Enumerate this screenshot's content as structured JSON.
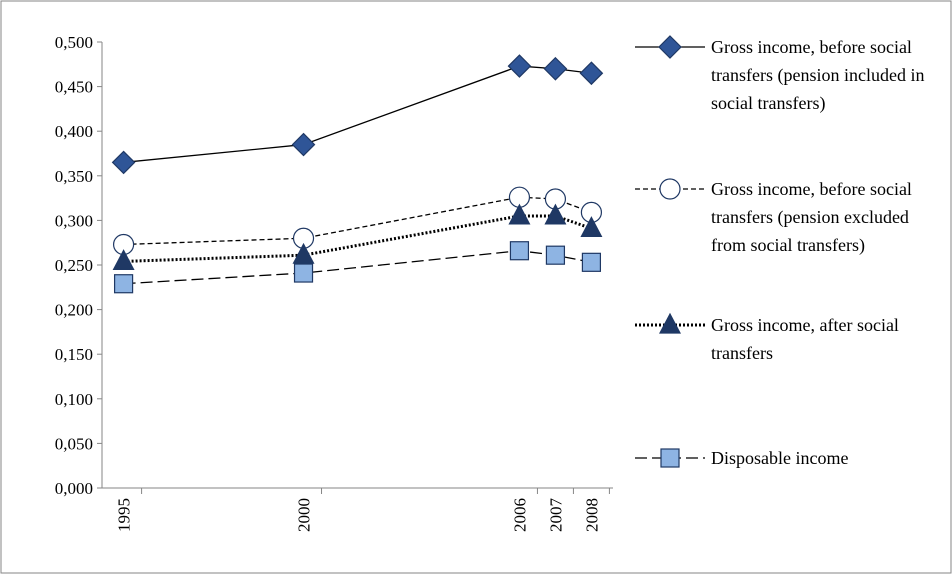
{
  "chart_data": {
    "type": "line",
    "x": [
      1995,
      2000,
      2006,
      2007,
      2008
    ],
    "xlim": [
      1994.4,
      2008.6
    ],
    "xticks": [
      1995,
      2000,
      2006,
      2007,
      2008
    ],
    "ylim": [
      0,
      0.5
    ],
    "yticks": [
      {
        "value": 0,
        "label": "0,000"
      },
      {
        "value": 0.05,
        "label": "0,050"
      },
      {
        "value": 0.1,
        "label": "0,100"
      },
      {
        "value": 0.15,
        "label": "0,150"
      },
      {
        "value": 0.2,
        "label": "0,200"
      },
      {
        "value": 0.25,
        "label": "0,250"
      },
      {
        "value": 0.3,
        "label": "0,300"
      },
      {
        "value": 0.35,
        "label": "0,350"
      },
      {
        "value": 0.4,
        "label": "0,400"
      },
      {
        "value": 0.45,
        "label": "0,450"
      },
      {
        "value": 0.5,
        "label": "0,500"
      }
    ],
    "grid": false,
    "legend": "right",
    "series": [
      {
        "name": "Gross income, before social transfers (pension included in social transfers)",
        "color": "#2f5597",
        "marker": "diamond",
        "dash": "none",
        "values": [
          0.365,
          0.385,
          0.473,
          0.47,
          0.465
        ]
      },
      {
        "name": "Gross income, before social transfers (pension excluded from social transfers)",
        "color": "#ffffff",
        "marker": "circle",
        "dash": "5,3",
        "values": [
          0.273,
          0.28,
          0.326,
          0.324,
          0.309
        ]
      },
      {
        "name": "Gross income, after social transfers",
        "color": "#1f3864",
        "marker": "triangle",
        "dash": "2,2",
        "values": [
          0.254,
          0.261,
          0.305,
          0.305,
          0.291
        ]
      },
      {
        "name": "Disposable income",
        "color": "#8eb4e3",
        "marker": "square",
        "dash": "12,5",
        "values": [
          0.229,
          0.241,
          0.266,
          0.261,
          0.253
        ]
      }
    ]
  }
}
